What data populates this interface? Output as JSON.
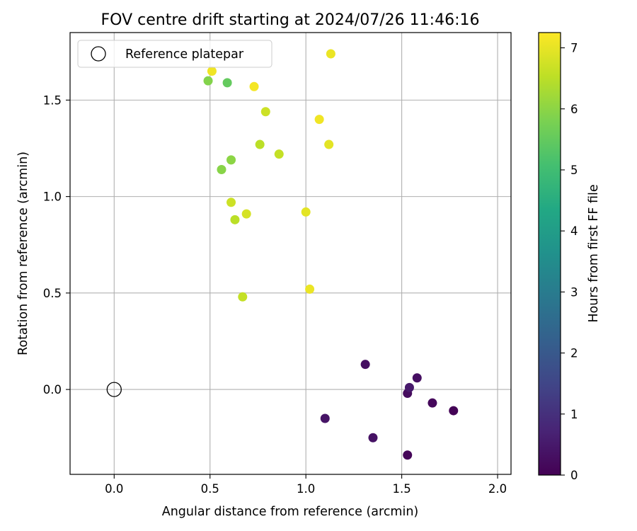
{
  "chart_data": {
    "type": "scatter",
    "title": "FOV centre drift starting at 2024/07/26 11:46:16",
    "xlabel": "Angular distance from reference (arcmin)",
    "ylabel": "Rotation from reference (arcmin)",
    "xlim": [
      -0.23,
      2.07
    ],
    "ylim": [
      -0.44,
      1.85
    ],
    "xticks": [
      0.0,
      0.5,
      1.0,
      1.5,
      2.0
    ],
    "yticks": [
      0.0,
      0.5,
      1.0,
      1.5
    ],
    "xtick_labels": [
      "0.0",
      "0.5",
      "1.0",
      "1.5",
      "2.0"
    ],
    "ytick_labels": [
      "0.0",
      "0.5",
      "1.0",
      "1.5"
    ],
    "grid": true,
    "legend": {
      "location": "upper-left",
      "entries": [
        {
          "label": "Reference platepar",
          "marker": "open-circle",
          "x": 0.0,
          "y": 0.0
        }
      ]
    },
    "colorbar": {
      "label": "Hours from first FF file",
      "colormap": "viridis",
      "range": [
        0,
        7.25
      ],
      "ticks": [
        0,
        1,
        2,
        3,
        4,
        5,
        6,
        7
      ],
      "tick_labels": [
        "0",
        "1",
        "2",
        "3",
        "4",
        "5",
        "6",
        "7"
      ]
    },
    "points": [
      {
        "x": 1.1,
        "y": -0.15,
        "hours": 0.4
      },
      {
        "x": 1.31,
        "y": 0.13,
        "hours": 0.3
      },
      {
        "x": 1.35,
        "y": -0.25,
        "hours": 0.35
      },
      {
        "x": 1.53,
        "y": -0.02,
        "hours": 0.2
      },
      {
        "x": 1.54,
        "y": 0.01,
        "hours": 0.5
      },
      {
        "x": 1.53,
        "y": -0.34,
        "hours": 0.1
      },
      {
        "x": 1.58,
        "y": 0.06,
        "hours": 0.3
      },
      {
        "x": 1.66,
        "y": -0.07,
        "hours": 0.15
      },
      {
        "x": 1.77,
        "y": -0.11,
        "hours": 0.05
      },
      {
        "x": 0.49,
        "y": 1.6,
        "hours": 5.9
      },
      {
        "x": 0.59,
        "y": 1.59,
        "hours": 5.5
      },
      {
        "x": 0.51,
        "y": 1.65,
        "hours": 7.1
      },
      {
        "x": 0.73,
        "y": 1.57,
        "hours": 7.15
      },
      {
        "x": 1.13,
        "y": 1.74,
        "hours": 7.05
      },
      {
        "x": 0.79,
        "y": 1.44,
        "hours": 6.7
      },
      {
        "x": 1.07,
        "y": 1.4,
        "hours": 7.1
      },
      {
        "x": 0.76,
        "y": 1.27,
        "hours": 6.5
      },
      {
        "x": 0.86,
        "y": 1.22,
        "hours": 6.6
      },
      {
        "x": 1.12,
        "y": 1.27,
        "hours": 6.95
      },
      {
        "x": 0.61,
        "y": 1.19,
        "hours": 6.0
      },
      {
        "x": 0.56,
        "y": 1.14,
        "hours": 5.95
      },
      {
        "x": 0.61,
        "y": 0.97,
        "hours": 6.7
      },
      {
        "x": 0.63,
        "y": 0.88,
        "hours": 6.5
      },
      {
        "x": 0.69,
        "y": 0.91,
        "hours": 6.8
      },
      {
        "x": 1.0,
        "y": 0.92,
        "hours": 6.95
      },
      {
        "x": 0.67,
        "y": 0.48,
        "hours": 6.6
      },
      {
        "x": 1.02,
        "y": 0.52,
        "hours": 7.05
      }
    ]
  }
}
